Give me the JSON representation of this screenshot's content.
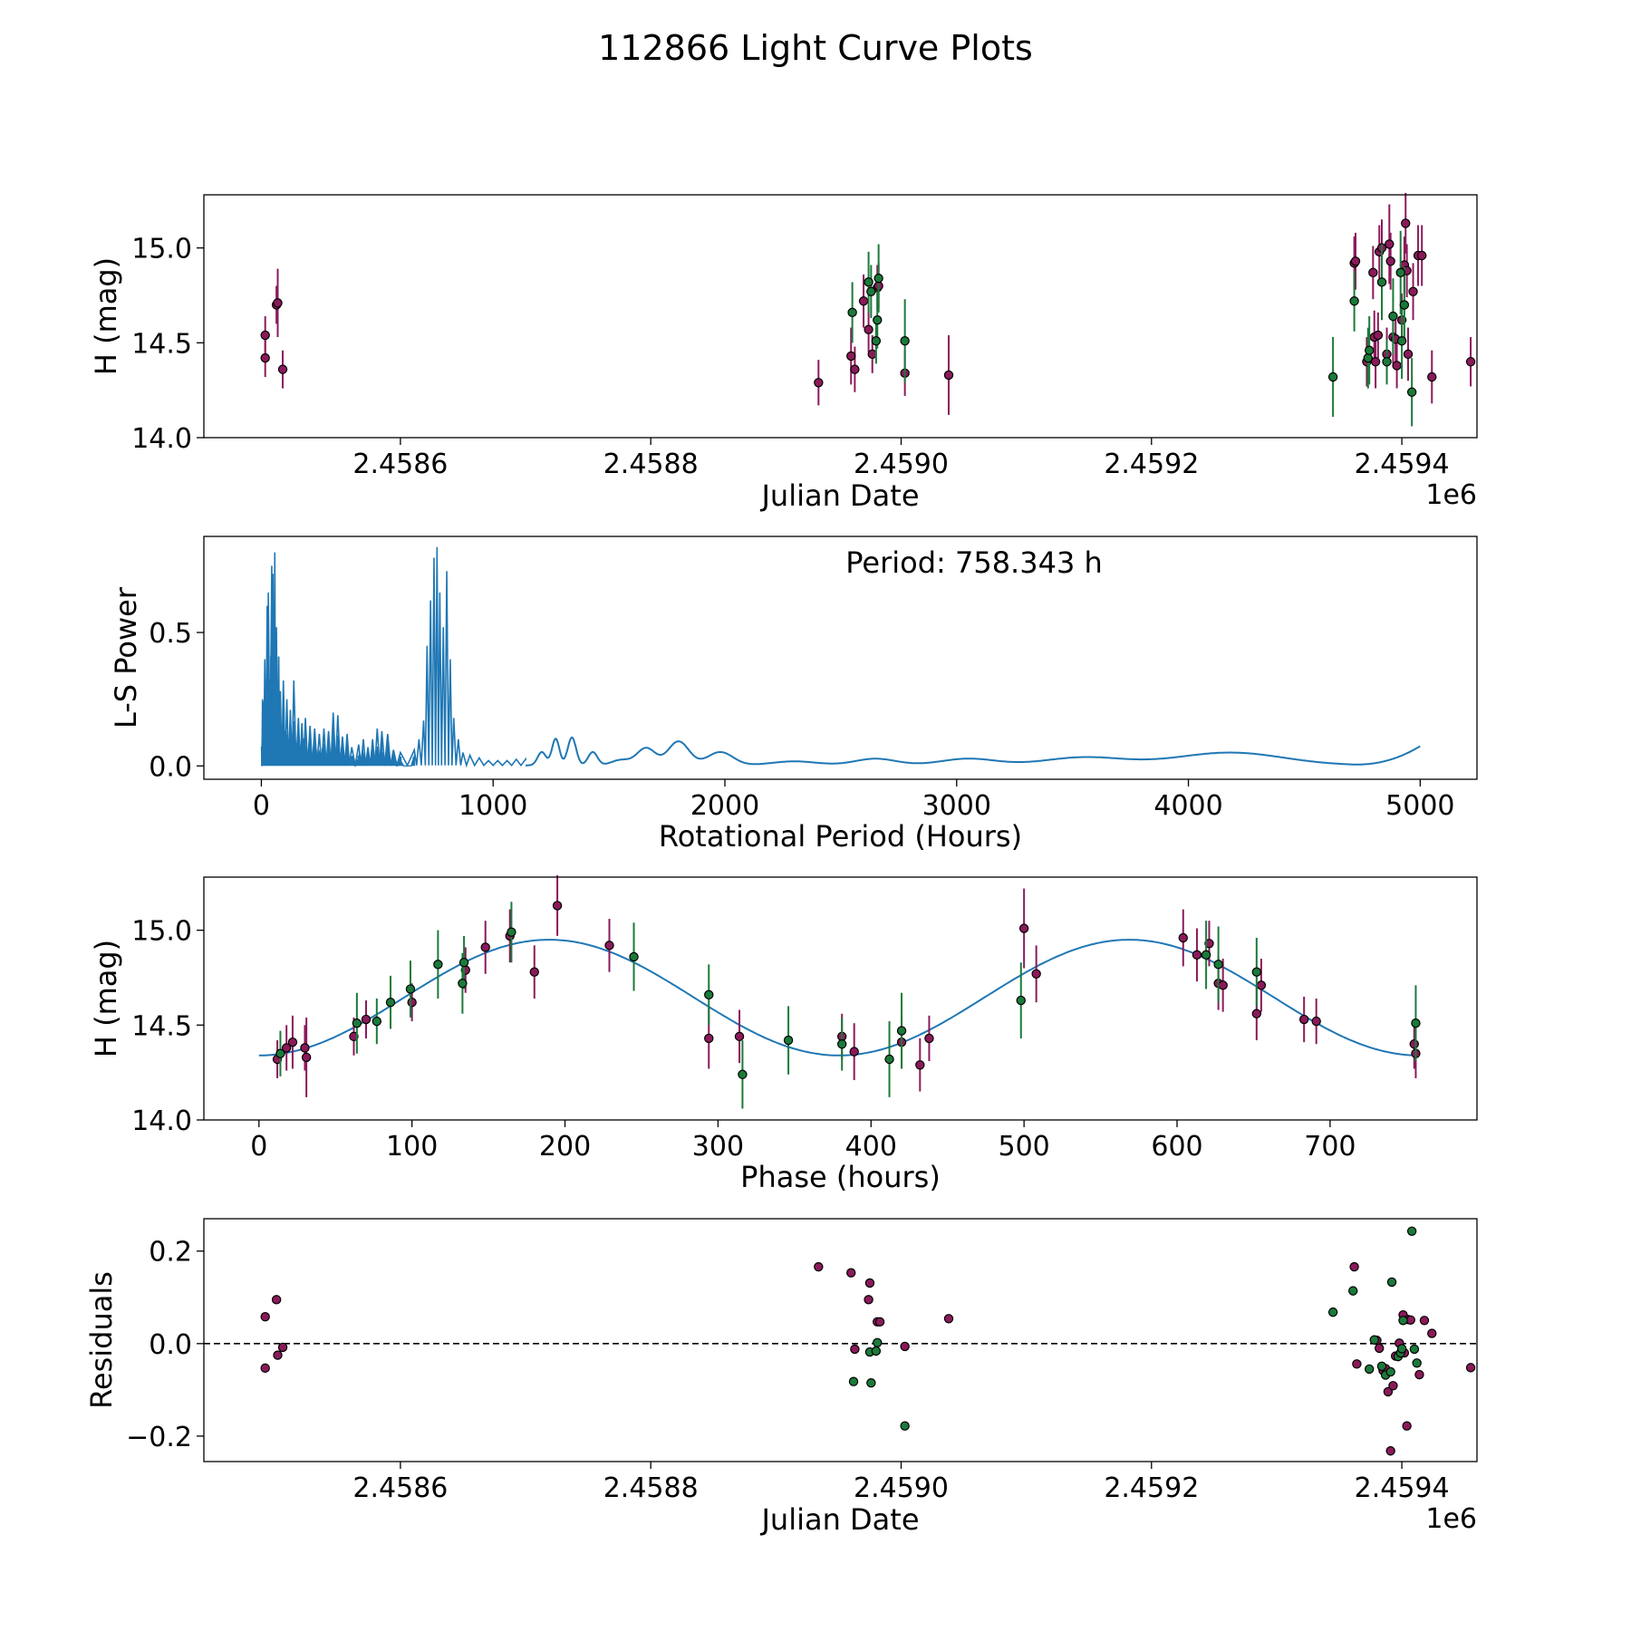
{
  "figure": {
    "title": "112866 Light Curve Plots"
  },
  "colors": {
    "maroon": "#8b1a5a",
    "green": "#1b7a3a",
    "line": "#1f77b4",
    "edge": "#000000"
  },
  "chart_data": [
    {
      "id": "lightcurve",
      "type": "scatter",
      "xlabel": "Julian Date",
      "ylabel": "H (mag)",
      "offset_label": "1e6",
      "xlim": [
        2458443,
        2459460
      ],
      "ylim": [
        14.0,
        15.28
      ],
      "xticks": [
        2458600,
        2458800,
        2459000,
        2459200,
        2459400
      ],
      "xtick_labels": [
        "2.4586",
        "2.4588",
        "2.4590",
        "2.4592",
        "2.4594"
      ],
      "yticks": [
        14.0,
        14.5,
        15.0
      ],
      "ytick_labels": [
        "14.0",
        "14.5",
        "15.0"
      ],
      "series": [
        {
          "name": "maroon",
          "color": "maroon",
          "x": [
            2458492,
            2458492,
            2458501,
            2458502,
            2458506,
            2458934,
            2458960,
            2458963,
            2458970,
            2458974,
            2458977,
            2458981,
            2458982,
            2459003,
            2459038,
            2459362,
            2459363,
            2459372,
            2459377,
            2459378,
            2459379,
            2459381,
            2459382,
            2459384,
            2459388,
            2459390,
            2459391,
            2459393,
            2459395,
            2459396,
            2459400,
            2459402,
            2459403,
            2459404,
            2459405,
            2459409,
            2459413,
            2459416,
            2459424,
            2459455
          ],
          "y": [
            14.42,
            14.54,
            14.7,
            14.71,
            14.36,
            14.29,
            14.43,
            14.36,
            14.72,
            14.57,
            14.44,
            14.79,
            14.8,
            14.34,
            14.33,
            14.92,
            14.93,
            14.4,
            14.87,
            14.53,
            14.4,
            14.54,
            14.98,
            15.0,
            14.44,
            15.02,
            14.93,
            14.53,
            14.52,
            14.38,
            14.62,
            14.91,
            15.13,
            14.88,
            14.44,
            14.77,
            14.96,
            14.96,
            14.32,
            14.4
          ],
          "err": [
            0.1,
            0.1,
            0.1,
            0.18,
            0.1,
            0.12,
            0.15,
            0.12,
            0.14,
            0.12,
            0.1,
            0.12,
            0.12,
            0.12,
            0.21,
            0.14,
            0.15,
            0.13,
            0.14,
            0.14,
            0.14,
            0.12,
            0.14,
            0.15,
            0.14,
            0.21,
            0.15,
            0.14,
            0.12,
            0.12,
            0.14,
            0.15,
            0.16,
            0.14,
            0.14,
            0.15,
            0.16,
            0.16,
            0.14,
            0.13
          ]
        },
        {
          "name": "green",
          "color": "green",
          "x": [
            2458961,
            2458974,
            2458976,
            2458980,
            2458981,
            2458982,
            2459003,
            2459345,
            2459362,
            2459373,
            2459374,
            2459384,
            2459388,
            2459393,
            2459399,
            2459400,
            2459402,
            2459408
          ],
          "y": [
            14.66,
            14.82,
            14.77,
            14.51,
            14.62,
            14.84,
            14.51,
            14.32,
            14.72,
            14.42,
            14.46,
            14.82,
            14.4,
            14.64,
            14.87,
            14.51,
            14.7,
            14.24
          ],
          "err": [
            0.16,
            0.16,
            0.14,
            0.12,
            0.15,
            0.18,
            0.22,
            0.21,
            0.16,
            0.16,
            0.18,
            0.2,
            0.12,
            0.2,
            0.22,
            0.2,
            0.2,
            0.18
          ]
        }
      ]
    },
    {
      "id": "periodogram",
      "type": "line",
      "xlabel": "Rotational Period (Hours)",
      "ylabel": "L-S Power",
      "annotation": "Period: 758.343 h",
      "xlim": [
        -248,
        5245
      ],
      "ylim": [
        -0.05,
        0.86
      ],
      "xticks": [
        0,
        1000,
        2000,
        3000,
        4000,
        5000
      ],
      "xtick_labels": [
        "0",
        "1000",
        "2000",
        "3000",
        "4000",
        "5000"
      ],
      "yticks": [
        0.0,
        0.5
      ],
      "ytick_labels": [
        "0.0",
        "0.5"
      ],
      "broad_peaks": [
        [
          1210,
          0.05,
          18
        ],
        [
          1270,
          0.1,
          16
        ],
        [
          1340,
          0.105,
          18
        ],
        [
          1430,
          0.05,
          20
        ],
        [
          1550,
          0.02,
          40
        ],
        [
          1660,
          0.065,
          40
        ],
        [
          1800,
          0.09,
          45
        ],
        [
          1980,
          0.05,
          55
        ],
        [
          2300,
          0.015,
          100
        ],
        [
          2650,
          0.025,
          90
        ],
        [
          3050,
          0.025,
          120
        ],
        [
          3550,
          0.03,
          170
        ],
        [
          4180,
          0.048,
          230
        ]
      ],
      "tail": [
        4700,
        5000,
        0.072
      ],
      "spikes": [
        [
          5,
          0.25
        ],
        [
          15,
          0.4
        ],
        [
          25,
          0.6
        ],
        [
          30,
          0.65
        ],
        [
          45,
          0.75
        ],
        [
          50,
          0.72
        ],
        [
          58,
          0.8
        ],
        [
          65,
          0.52
        ],
        [
          75,
          0.41
        ],
        [
          82,
          0.28
        ],
        [
          95,
          0.32
        ],
        [
          110,
          0.25
        ],
        [
          125,
          0.21
        ],
        [
          140,
          0.32
        ],
        [
          160,
          0.18
        ],
        [
          175,
          0.16
        ],
        [
          190,
          0.18
        ],
        [
          210,
          0.15
        ],
        [
          230,
          0.14
        ],
        [
          250,
          0.12
        ],
        [
          270,
          0.14
        ],
        [
          290,
          0.13
        ],
        [
          310,
          0.2
        ],
        [
          330,
          0.19
        ],
        [
          350,
          0.11
        ],
        [
          370,
          0.12
        ],
        [
          390,
          0.07
        ],
        [
          420,
          0.08
        ],
        [
          440,
          0.1
        ],
        [
          460,
          0.07
        ],
        [
          480,
          0.1
        ],
        [
          500,
          0.14
        ],
        [
          520,
          0.13
        ],
        [
          545,
          0.12
        ],
        [
          570,
          0.06
        ],
        [
          600,
          0.05
        ],
        [
          660,
          0.06
        ],
        [
          680,
          0.1
        ],
        [
          700,
          0.17
        ],
        [
          715,
          0.45
        ],
        [
          730,
          0.62
        ],
        [
          745,
          0.78
        ],
        [
          758,
          0.82
        ],
        [
          770,
          0.65
        ],
        [
          785,
          0.52
        ],
        [
          800,
          0.73
        ],
        [
          815,
          0.4
        ],
        [
          830,
          0.18
        ],
        [
          850,
          0.1
        ],
        [
          870,
          0.05
        ],
        [
          900,
          0.04
        ],
        [
          940,
          0.03
        ],
        [
          980,
          0.02
        ],
        [
          1020,
          0.02
        ],
        [
          1060,
          0.02
        ],
        [
          1100,
          0.025
        ],
        [
          1140,
          0.025
        ]
      ]
    },
    {
      "id": "phase",
      "type": "scatter",
      "xlabel": "Phase (hours)",
      "ylabel": "H (mag)",
      "xlim": [
        -36,
        796
      ],
      "ylim": [
        14.0,
        15.28
      ],
      "xticks": [
        0,
        100,
        200,
        300,
        400,
        500,
        600,
        700
      ],
      "xtick_labels": [
        "0",
        "100",
        "200",
        "300",
        "400",
        "500",
        "600",
        "700"
      ],
      "yticks": [
        14.0,
        14.5,
        15.0
      ],
      "ytick_labels": [
        "14.0",
        "14.5",
        "15.0"
      ],
      "model": {
        "type": "sine",
        "mean": 14.645,
        "amplitude": 0.305,
        "period_hours": 379.17,
        "phase_of_min": 0
      },
      "series": [
        {
          "name": "maroon",
          "color": "maroon",
          "x": [
            12,
            18,
            22,
            30,
            31,
            62,
            70,
            100,
            135,
            148,
            164,
            180,
            195,
            229,
            294,
            314,
            381,
            389,
            420,
            432,
            438,
            500,
            508,
            604,
            613,
            621,
            627,
            630,
            652,
            655,
            683,
            691,
            755,
            756
          ],
          "y": [
            14.32,
            14.38,
            14.41,
            14.38,
            14.33,
            14.44,
            14.53,
            14.62,
            14.79,
            14.91,
            14.97,
            14.78,
            15.13,
            14.92,
            14.43,
            14.44,
            14.44,
            14.36,
            14.41,
            14.29,
            14.43,
            15.01,
            14.77,
            14.96,
            14.87,
            14.93,
            14.72,
            14.71,
            14.56,
            14.71,
            14.53,
            14.52,
            14.4,
            14.35
          ],
          "err": [
            0.1,
            0.12,
            0.14,
            0.12,
            0.21,
            0.1,
            0.1,
            0.1,
            0.12,
            0.14,
            0.14,
            0.14,
            0.16,
            0.14,
            0.16,
            0.14,
            0.12,
            0.15,
            0.14,
            0.14,
            0.12,
            0.21,
            0.15,
            0.15,
            0.14,
            0.12,
            0.14,
            0.14,
            0.14,
            0.14,
            0.12,
            0.12,
            0.13,
            0.13
          ]
        },
        {
          "name": "green",
          "color": "green",
          "x": [
            14,
            64,
            77,
            86,
            99,
            117,
            133,
            134,
            165,
            245,
            294,
            316,
            346,
            381,
            412,
            420,
            498,
            619,
            627,
            652,
            756
          ],
          "y": [
            14.35,
            14.51,
            14.52,
            14.62,
            14.69,
            14.82,
            14.72,
            14.83,
            14.99,
            14.86,
            14.66,
            14.24,
            14.42,
            14.4,
            14.32,
            14.47,
            14.63,
            14.87,
            14.82,
            14.78,
            14.51
          ]
        }
      ]
    },
    {
      "id": "residuals",
      "type": "scatter",
      "xlabel": "Julian Date",
      "ylabel": "Residuals",
      "offset_label": "1e6",
      "xlim": [
        2458443,
        2459460
      ],
      "ylim": [
        -0.255,
        0.27
      ],
      "xticks": [
        2458600,
        2458800,
        2459000,
        2459200,
        2459400
      ],
      "xtick_labels": [
        "2.4586",
        "2.4588",
        "2.4590",
        "2.4592",
        "2.4594"
      ],
      "yticks": [
        -0.2,
        0.0,
        0.2
      ],
      "ytick_labels": [
        "−0.2",
        "0.0",
        "0.2"
      ],
      "zero_line": 0.0,
      "series": [
        {
          "name": "maroon",
          "color": "maroon",
          "x": [
            2458492,
            2458492,
            2458501,
            2458502,
            2458506,
            2458934,
            2458960,
            2458963,
            2458974,
            2458975,
            2458981,
            2458983,
            2459003,
            2459038,
            2459362,
            2459364,
            2459380,
            2459382,
            2459385,
            2459387,
            2459389,
            2459391,
            2459393,
            2459395,
            2459398,
            2459401,
            2459402,
            2459404,
            2459405,
            2459407,
            2459414,
            2459418,
            2459424,
            2459455
          ],
          "y": [
            0.058,
            -0.053,
            0.095,
            -0.025,
            -0.008,
            0.166,
            0.153,
            -0.012,
            0.095,
            0.131,
            0.047,
            0.047,
            -0.006,
            0.054,
            0.166,
            -0.044,
            0.007,
            -0.01,
            -0.058,
            -0.054,
            -0.104,
            -0.232,
            -0.091,
            -0.027,
            0.001,
            0.062,
            -0.02,
            -0.178,
            0.052,
            0.051,
            -0.067,
            0.05,
            0.022,
            -0.052
          ]
        },
        {
          "name": "green",
          "color": "green",
          "x": [
            2458962,
            2458975,
            2458976,
            2458980,
            2458981,
            2459003,
            2459345,
            2459361,
            2459374,
            2459378,
            2459384,
            2459387,
            2459391,
            2459392,
            2459397,
            2459399,
            2459400,
            2459401,
            2459408,
            2459410,
            2459412
          ],
          "y": [
            -0.082,
            -0.018,
            -0.085,
            -0.016,
            0.002,
            -0.178,
            0.068,
            0.114,
            -0.055,
            0.008,
            -0.049,
            -0.068,
            -0.061,
            0.133,
            -0.028,
            -0.02,
            -0.011,
            0.05,
            0.243,
            -0.012,
            -0.042
          ]
        }
      ]
    }
  ]
}
